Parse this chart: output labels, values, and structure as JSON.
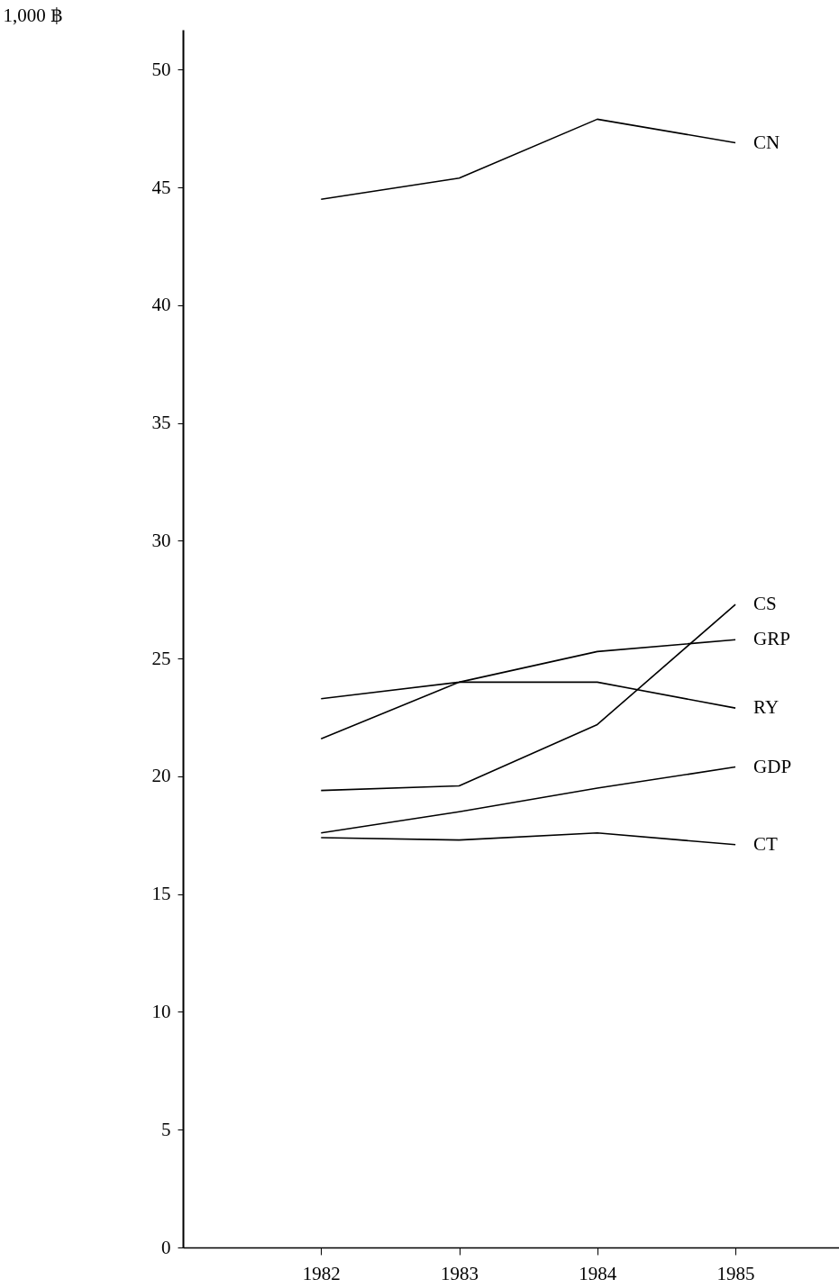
{
  "chart_data": {
    "type": "line",
    "ylabel": "1,000 ฿",
    "x": [
      1982,
      1983,
      1984,
      1985
    ],
    "xlim": [
      1981,
      1985.75
    ],
    "xticks": [
      1982,
      1983,
      1984,
      1985
    ],
    "ylim": [
      0,
      51.7
    ],
    "yticks": [
      0,
      5,
      10,
      15,
      20,
      25,
      30,
      35,
      40,
      45,
      50
    ],
    "grid": false,
    "series": [
      {
        "name": "CN",
        "color": "#000000",
        "values": [
          44.5,
          45.4,
          47.9,
          46.9
        ]
      },
      {
        "name": "CS",
        "color": "#000000",
        "values": [
          19.4,
          19.6,
          22.2,
          27.3
        ]
      },
      {
        "name": "GRP",
        "color": "#000000",
        "values": [
          23.3,
          24.0,
          25.3,
          25.8
        ]
      },
      {
        "name": "RY",
        "color": "#000000",
        "values": [
          21.6,
          24.0,
          24.0,
          22.9
        ]
      },
      {
        "name": "GDP",
        "color": "#000000",
        "values": [
          17.6,
          18.5,
          19.5,
          20.4
        ]
      },
      {
        "name": "CT",
        "color": "#000000",
        "values": [
          17.4,
          17.3,
          17.6,
          17.1
        ]
      }
    ]
  }
}
